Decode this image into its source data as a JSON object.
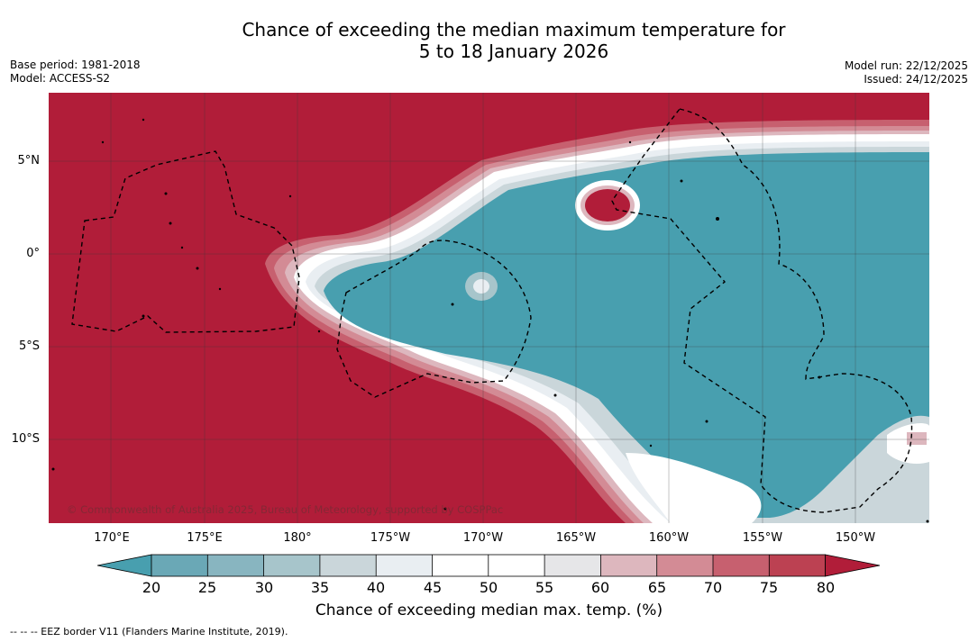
{
  "title_line1": "Chance of exceeding the median maximum temperature for",
  "title_line2": "5 to 18 January 2026",
  "meta_left": {
    "base_period": "Base period: 1981-2018",
    "model": "Model: ACCESS-S2"
  },
  "meta_right": {
    "model_run": "Model run: 22/12/2025",
    "issued": "Issued: 24/12/2025"
  },
  "map": {
    "copyright": "© Commonwealth of Australia 2025, Bureau of Meteorology, supported by COSPPac",
    "lat_labels": [
      "5°N",
      "0°",
      "5°S",
      "10°S"
    ],
    "lon_labels": [
      "170°E",
      "175°E",
      "180°",
      "175°W",
      "170°W",
      "165°W",
      "160°W",
      "155°W",
      "150°W"
    ],
    "colors": {
      "hot": "#b11d39",
      "cool": "#489faf",
      "neutral": "#ffffff"
    }
  },
  "colorbar": {
    "ticks": [
      "20",
      "25",
      "30",
      "35",
      "40",
      "45",
      "50",
      "55",
      "60",
      "65",
      "70",
      "75",
      "80"
    ],
    "colors": [
      "#489faf",
      "#6aa8b6",
      "#88b5c0",
      "#a7c5cb",
      "#cad6da",
      "#e9eef2",
      "#ffffff",
      "#ffffff",
      "#e6e6e8",
      "#ddb7be",
      "#d38b95",
      "#c7606f",
      "#bc4152",
      "#b11d39"
    ],
    "title": "Chance of exceeding median max. temp. (%)"
  },
  "footnote": "--  --  -- EEZ border V11 (Flanders Marine Institute, 2019)."
}
